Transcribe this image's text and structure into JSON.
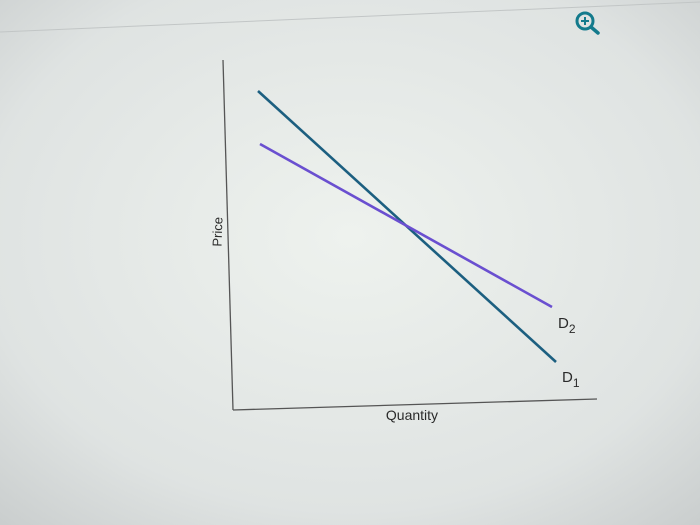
{
  "axes": {
    "y_label": "Price",
    "x_label": "Quantity"
  },
  "curves": [
    {
      "label": "D",
      "subscript": "2"
    },
    {
      "label": "D",
      "subscript": "1"
    }
  ]
}
